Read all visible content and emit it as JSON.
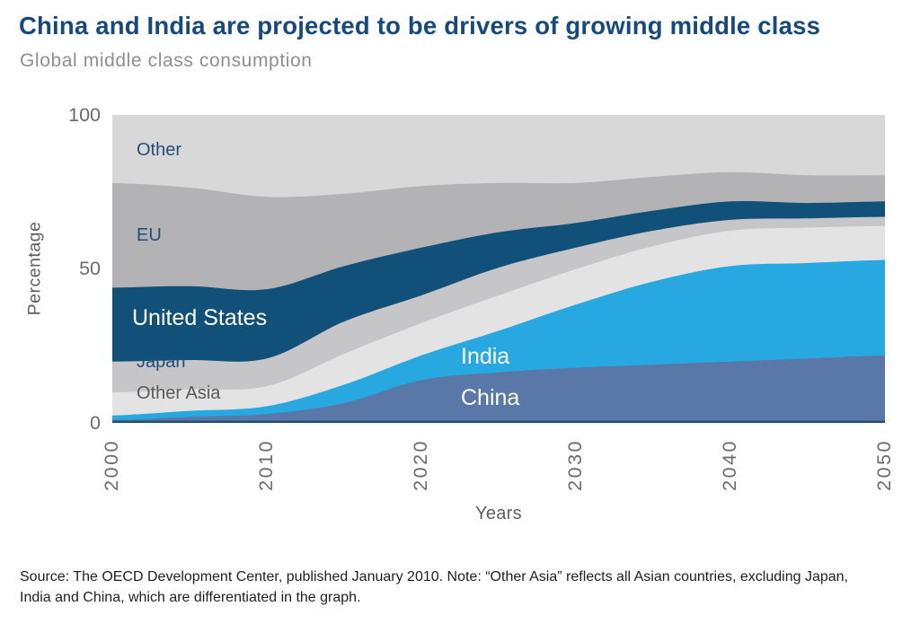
{
  "header": {
    "title": "China and India are projected to be drivers of growing middle class",
    "subtitle": "Global middle class consumption"
  },
  "chart_data": {
    "type": "area",
    "stacked": true,
    "percent_stacked": true,
    "title": "Global middle class consumption",
    "xlabel": "Years",
    "ylabel": "Percentage",
    "ylim": [
      0,
      100
    ],
    "xlim": [
      2000,
      2050
    ],
    "grid": false,
    "legend_position": "labels-inside-areas",
    "axis_line_color": "#1d4e79",
    "ytick_labels": [
      "100",
      "50",
      "0"
    ],
    "xtick_labels": [
      "2000",
      "2010",
      "2020",
      "2030",
      "2040",
      "2050"
    ],
    "x": [
      2000,
      2005,
      2010,
      2015,
      2020,
      2025,
      2030,
      2035,
      2040,
      2045,
      2050
    ],
    "series": [
      {
        "name": "China",
        "color": "#5977a7",
        "values": [
          1,
          2,
          3,
          6.5,
          14,
          16.5,
          18,
          19,
          20,
          21,
          22
        ]
      },
      {
        "name": "India",
        "color": "#28a8e0",
        "values": [
          1.5,
          2,
          2.5,
          6,
          8,
          13.5,
          20.5,
          27,
          31,
          31,
          31
        ]
      },
      {
        "name": "Other Asia",
        "color": "#e3e3e4",
        "values": [
          7.5,
          7,
          6.5,
          10,
          10.5,
          11.5,
          11.5,
          11.5,
          11.5,
          11.5,
          11
        ]
      },
      {
        "name": "Japan",
        "color": "#c6c6c8",
        "values": [
          10,
          9.5,
          9,
          10.5,
          9,
          9,
          7,
          5,
          3.5,
          3,
          3
        ]
      },
      {
        "name": "United States",
        "color": "#115078",
        "values": [
          24,
          24,
          22.5,
          18,
          15.5,
          11.5,
          8,
          6.5,
          6,
          5,
          5
        ]
      },
      {
        "name": "EU",
        "color": "#b3b3b5",
        "values": [
          34,
          32,
          30,
          23.5,
          20,
          16,
          13,
          11,
          9.5,
          9,
          8.5
        ]
      },
      {
        "name": "Other",
        "color": "#d8d8d9",
        "values": [
          22,
          23.5,
          26.5,
          25.5,
          23,
          22,
          22,
          20,
          18.5,
          19.5,
          19.5
        ]
      }
    ]
  },
  "footer": {
    "source_line1": "Source: The OECD Development Center, published January 2010. Note: “Other Asia” reflects all Asian countries, excluding Japan,",
    "source_line2": "India and China, which are differentiated in the graph."
  }
}
